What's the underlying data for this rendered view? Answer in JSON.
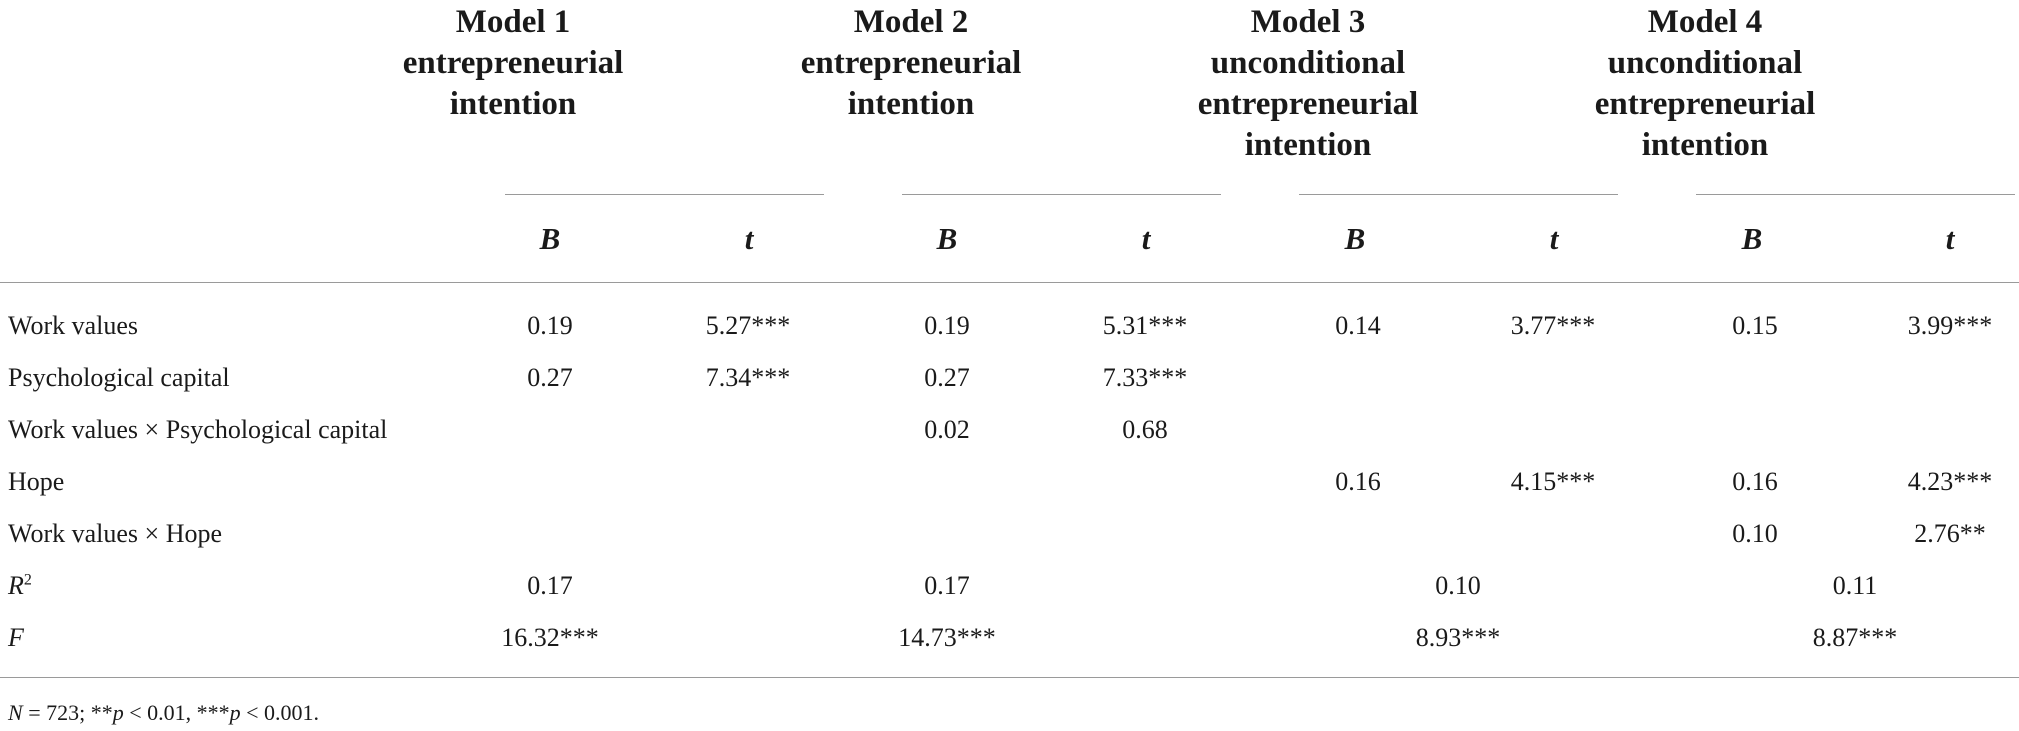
{
  "models": [
    {
      "title": "Model 1",
      "dv": [
        "entrepreneurial",
        "intention"
      ]
    },
    {
      "title": "Model 2",
      "dv": [
        "entrepreneurial",
        "intention"
      ]
    },
    {
      "title": "Model 3",
      "dv": [
        "unconditional",
        "entrepreneurial",
        "intention"
      ]
    },
    {
      "title": "Model 4",
      "dv": [
        "unconditional",
        "entrepreneurial",
        "intention"
      ]
    }
  ],
  "sub_headers": {
    "b": "B",
    "t": "t"
  },
  "rows": {
    "work_values": {
      "label": "Work values",
      "m1_b": "0.19",
      "m1_t": "5.27***",
      "m2_b": "0.19",
      "m2_t": "5.31***",
      "m3_b": "0.14",
      "m3_t": "3.77***",
      "m4_b": "0.15",
      "m4_t": "3.99***"
    },
    "psycap": {
      "label": "Psychological capital",
      "m1_b": "0.27",
      "m1_t": "7.34***",
      "m2_b": "0.27",
      "m2_t": "7.33***"
    },
    "wv_x_psycap": {
      "label": "Work values × Psychological capital",
      "m2_b": "0.02",
      "m2_t": "0.68"
    },
    "hope": {
      "label": "Hope",
      "m3_b": "0.16",
      "m3_t": "4.15***",
      "m4_b": "0.16",
      "m4_t": "4.23***"
    },
    "wv_x_hope": {
      "label": "Work values × Hope",
      "m4_b": "0.10",
      "m4_t": "2.76**"
    },
    "r2": {
      "label_base": "R",
      "label_sup": "2",
      "m1": "0.17",
      "m2": "0.17",
      "m3": "0.10",
      "m4": "0.11"
    },
    "f": {
      "label": "F",
      "m1": "16.32***",
      "m2": "14.73***",
      "m3": "8.93***",
      "m4": "8.87***"
    }
  },
  "note": {
    "n_label": "N",
    "n_value": " = 723; **",
    "p1_sym": "p",
    "p1_rest": " < 0.01, ***",
    "p2_sym": "p",
    "p2_rest": " < 0.001."
  }
}
